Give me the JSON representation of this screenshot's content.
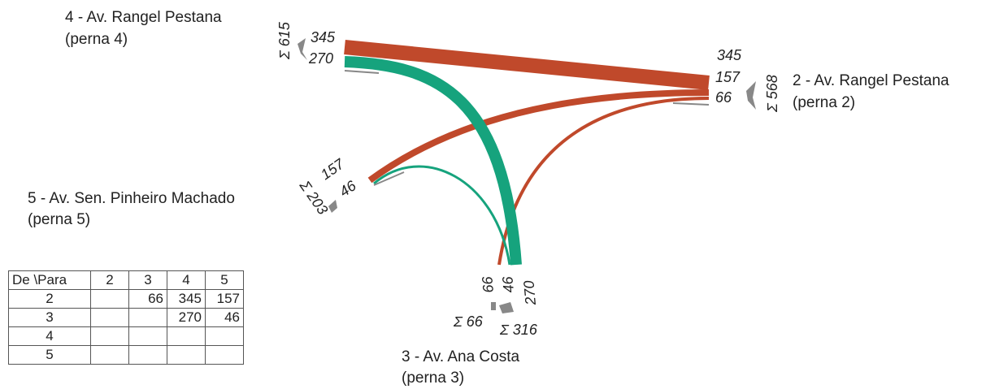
{
  "legs": [
    {
      "id": "4",
      "line1": "4 - Av. Rangel Pestana",
      "line2": "(perna 4)",
      "sum": "Σ 615",
      "in": "345",
      "out": "270"
    },
    {
      "id": "2",
      "line1": "2 - Av. Rangel Pestana",
      "line2": "(perna 2)",
      "sum": "Σ 568",
      "flows": [
        "345",
        "157",
        "66"
      ]
    },
    {
      "id": "5",
      "line1": "5 - Av. Sen. Pinheiro Machado",
      "line2": "(perna 5)",
      "sum": "Σ 203",
      "in": "157",
      "out": "46"
    },
    {
      "id": "3",
      "line1": "3 - Av. Ana Costa",
      "line2": "(perna 3)",
      "sum_in": "Σ 66",
      "sum_out": "Σ 316",
      "flows": [
        "66",
        "46",
        "270"
      ]
    }
  ],
  "colors": {
    "flow_from_2": "#c0492b",
    "flow_from_3": "#16a37d",
    "sum_marker": "#888888"
  },
  "table": {
    "corner": "De \\Para",
    "columns": [
      "2",
      "3",
      "4",
      "5"
    ],
    "rows": [
      {
        "label": "2",
        "cells": [
          "",
          "66",
          "345",
          "157"
        ]
      },
      {
        "label": "3",
        "cells": [
          "",
          "",
          "270",
          "46"
        ]
      },
      {
        "label": "4",
        "cells": [
          "",
          "",
          "",
          ""
        ]
      },
      {
        "label": "5",
        "cells": [
          "",
          "",
          "",
          ""
        ]
      }
    ]
  },
  "flows": [
    {
      "from": "2",
      "to": "4",
      "value": 345
    },
    {
      "from": "2",
      "to": "5",
      "value": 157
    },
    {
      "from": "2",
      "to": "3",
      "value": 66
    },
    {
      "from": "3",
      "to": "4",
      "value": 270
    },
    {
      "from": "3",
      "to": "5",
      "value": 46
    }
  ]
}
